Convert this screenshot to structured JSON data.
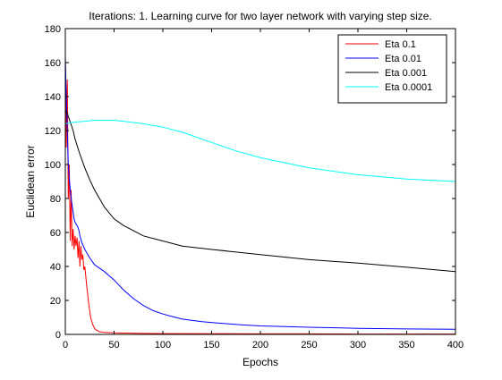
{
  "chart_data": {
    "type": "line",
    "title": "Iterations: 1. Learning curve for two layer network with varying step size.",
    "xlabel": "Epochs",
    "ylabel": "Euclidean error",
    "xlim": [
      0,
      400
    ],
    "ylim": [
      0,
      180
    ],
    "x_ticks": [
      "0",
      "50",
      "100",
      "150",
      "200",
      "250",
      "300",
      "350",
      "400"
    ],
    "y_ticks": [
      "0",
      "20",
      "40",
      "60",
      "80",
      "100",
      "120",
      "140",
      "160",
      "180"
    ],
    "grid": false,
    "legend_position": "top-right",
    "series": [
      {
        "name": "Eta 0.1",
        "color": "#ff0000",
        "x": [
          0,
          1,
          2,
          3,
          4,
          5,
          6,
          7,
          8,
          9,
          10,
          11,
          12,
          13,
          14,
          15,
          16,
          17,
          18,
          19,
          20,
          22,
          24,
          26,
          28,
          30,
          32,
          35,
          40,
          50,
          60,
          80,
          100,
          150,
          200,
          250,
          300,
          350,
          400
        ],
        "y": [
          163,
          110,
          150,
          80,
          100,
          55,
          85,
          52,
          62,
          50,
          58,
          52,
          57,
          45,
          55,
          40,
          52,
          44,
          47,
          38,
          40,
          28,
          18,
          10,
          6,
          3.5,
          2.5,
          1.6,
          1.2,
          0.9,
          0.8,
          0.6,
          0.5,
          0.4,
          0.3,
          0.3,
          0.2,
          0.2,
          0.2
        ]
      },
      {
        "name": "Eta 0.01",
        "color": "#0000ff",
        "x": [
          0,
          1,
          2,
          3,
          4,
          5,
          6,
          7,
          8,
          9,
          10,
          11,
          12,
          13,
          14,
          15,
          17,
          20,
          25,
          30,
          40,
          50,
          60,
          70,
          80,
          90,
          100,
          110,
          120,
          140,
          160,
          180,
          200,
          250,
          300,
          350,
          400
        ],
        "y": [
          163,
          140,
          120,
          100,
          92,
          85,
          80,
          76,
          72,
          68,
          66,
          65,
          64,
          63,
          61,
          58,
          54,
          50,
          45,
          41,
          37,
          32,
          26,
          21,
          17,
          14,
          12,
          10.5,
          9,
          7.5,
          6.5,
          5.7,
          5,
          4.2,
          3.6,
          3.2,
          3
        ]
      },
      {
        "name": "Eta 0.001",
        "color": "#000000",
        "x": [
          0,
          2,
          5,
          8,
          10,
          15,
          20,
          25,
          30,
          40,
          50,
          60,
          70,
          80,
          100,
          120,
          150,
          200,
          250,
          300,
          350,
          400
        ],
        "y": [
          132,
          130,
          125,
          120,
          115,
          106,
          98,
          91,
          85,
          75,
          68,
          64,
          61,
          58,
          55,
          52,
          50,
          47,
          44,
          42,
          39.5,
          37
        ]
      },
      {
        "name": "Eta 0.0001",
        "color": "#00ffff",
        "x": [
          0,
          10,
          20,
          30,
          40,
          50,
          60,
          80,
          100,
          120,
          150,
          175,
          200,
          250,
          300,
          350,
          400
        ],
        "y": [
          124,
          125,
          125.5,
          126,
          126,
          126,
          125.5,
          124,
          122,
          119,
          113,
          108,
          104,
          98,
          94,
          91.5,
          90
        ]
      }
    ]
  }
}
